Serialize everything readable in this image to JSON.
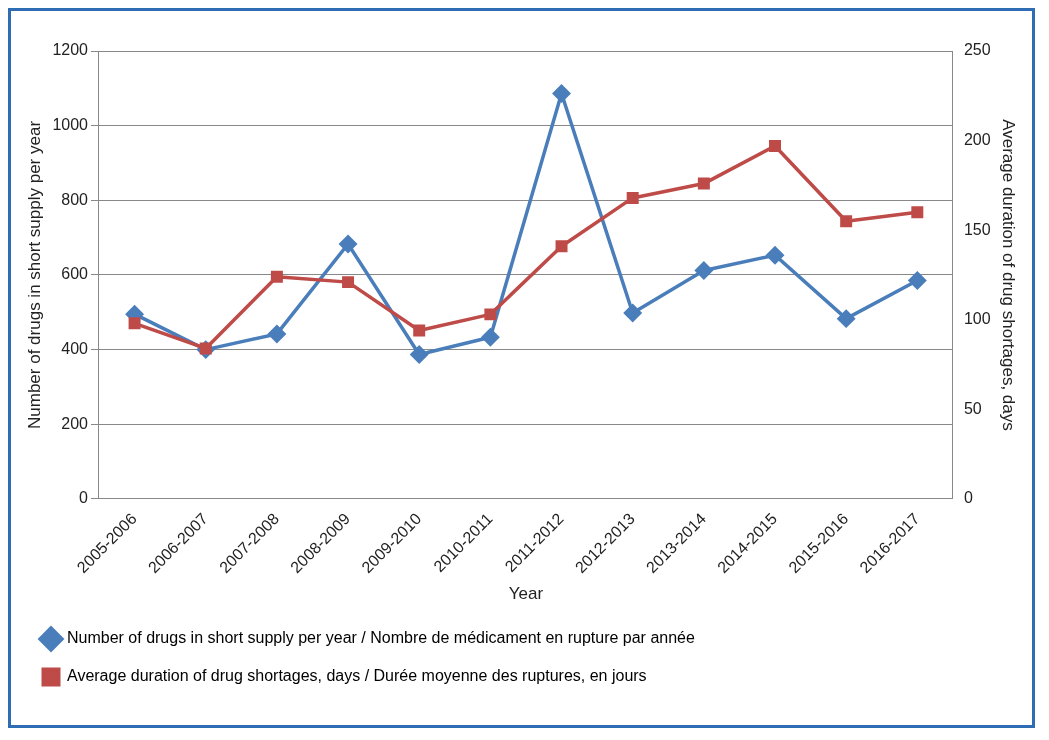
{
  "chart_data": {
    "type": "line",
    "xlabel": "Year",
    "ylabel": "Number of drugs in short supply per year",
    "y2label": "Average duration of drug shortages, days",
    "categories": [
      "2005-2006",
      "2006-2007",
      "2007-2008",
      "2008-2009",
      "2009-2010",
      "2010-2011",
      "2011-2012",
      "2012-2013",
      "2013-2014",
      "2014-2015",
      "2015-2016",
      "2016-2017"
    ],
    "series": [
      {
        "name": "Number of drugs in short supply per year / Nombre de médicament en rupture par année",
        "color": "#4a7ebb",
        "marker": "diamond",
        "values": [
          495,
          400,
          442,
          683,
          387,
          433,
          1086,
          498,
          612,
          653,
          483,
          585
        ]
      },
      {
        "name": "Average duration of drug shortages, days / Durée moyenne des ruptures, en jours",
        "color": "#be4b48",
        "marker": "square",
        "axis": "y2",
        "values": [
          98,
          84,
          124,
          121,
          94,
          103,
          141,
          168,
          176,
          197,
          155,
          160
        ]
      }
    ],
    "ylim": [
      0,
      1200
    ],
    "yticks": [
      0,
      200,
      400,
      600,
      800,
      1000,
      1200
    ],
    "y2lim": [
      0,
      250
    ],
    "y2ticks": [
      0,
      50,
      100,
      150,
      200,
      250
    ],
    "grid": "y",
    "legend": "bottom",
    "line_style": "solid"
  }
}
